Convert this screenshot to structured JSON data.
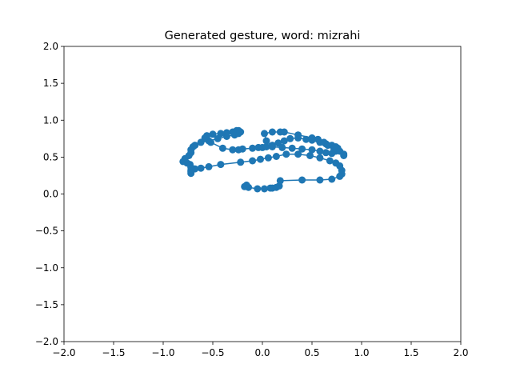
{
  "chart_data": {
    "type": "line",
    "title": "Generated gesture, word: mizrahi",
    "xlabel": "",
    "ylabel": "",
    "xlim": [
      -2.0,
      2.0
    ],
    "ylim": [
      -2.0,
      2.0
    ],
    "x_ticks": [
      "−2.0",
      "−1.5",
      "−1.0",
      "−0.5",
      "0.0",
      "0.5",
      "1.0",
      "1.5",
      "2.0"
    ],
    "y_ticks": [
      "−2.0",
      "−1.5",
      "−1.0",
      "−0.5",
      "0.0",
      "0.5",
      "1.0",
      "1.5",
      "2.0"
    ],
    "grid": false,
    "markers": true,
    "series_color": "#1f77b4",
    "series": [
      {
        "x": [
          -0.18,
          -0.16,
          -0.14,
          -0.05,
          0.02,
          0.08,
          0.1,
          0.14,
          0.17,
          0.18,
          0.4,
          0.58,
          0.7,
          0.78,
          0.8,
          0.8,
          0.78,
          0.74,
          0.68,
          0.58,
          0.48,
          0.36,
          0.24,
          0.14,
          0.06,
          -0.02,
          -0.1,
          -0.22,
          -0.42,
          -0.54,
          -0.62,
          -0.68,
          -0.72,
          -0.72,
          -0.72,
          -0.72,
          -0.73,
          -0.76,
          -0.8,
          -0.78,
          -0.74,
          -0.72,
          -0.72,
          -0.7,
          -0.68,
          -0.62,
          -0.54,
          -0.45,
          -0.36,
          -0.28,
          -0.24,
          -0.22,
          -0.24,
          -0.26,
          -0.3,
          -0.36,
          -0.42,
          -0.5,
          -0.56,
          -0.58,
          -0.52,
          -0.4,
          -0.3,
          -0.24,
          -0.2,
          -0.1,
          -0.04,
          0.0,
          0.04,
          0.1,
          0.16,
          0.22,
          0.28,
          0.36,
          0.44,
          0.5,
          0.58,
          0.64,
          0.7,
          0.74,
          0.76,
          0.74,
          0.7,
          0.64,
          0.58,
          0.5,
          0.4,
          0.3,
          0.2,
          0.1,
          0.04,
          0.02,
          0.1,
          0.18,
          0.22,
          0.36,
          0.5,
          0.56,
          0.62,
          0.66,
          0.72,
          0.78,
          0.82,
          0.82
        ],
        "y": [
          0.1,
          0.12,
          0.09,
          0.07,
          0.07,
          0.08,
          0.08,
          0.09,
          0.11,
          0.18,
          0.19,
          0.19,
          0.2,
          0.24,
          0.27,
          0.32,
          0.38,
          0.42,
          0.45,
          0.49,
          0.52,
          0.54,
          0.54,
          0.51,
          0.49,
          0.47,
          0.45,
          0.43,
          0.4,
          0.37,
          0.35,
          0.34,
          0.32,
          0.3,
          0.28,
          0.36,
          0.4,
          0.42,
          0.44,
          0.48,
          0.52,
          0.56,
          0.6,
          0.64,
          0.66,
          0.7,
          0.72,
          0.75,
          0.78,
          0.8,
          0.82,
          0.84,
          0.86,
          0.86,
          0.84,
          0.83,
          0.82,
          0.81,
          0.79,
          0.76,
          0.7,
          0.62,
          0.6,
          0.6,
          0.61,
          0.62,
          0.63,
          0.63,
          0.64,
          0.66,
          0.69,
          0.72,
          0.75,
          0.76,
          0.74,
          0.73,
          0.7,
          0.68,
          0.66,
          0.64,
          0.62,
          0.58,
          0.55,
          0.56,
          0.58,
          0.6,
          0.61,
          0.62,
          0.63,
          0.64,
          0.72,
          0.82,
          0.84,
          0.84,
          0.84,
          0.8,
          0.76,
          0.74,
          0.7,
          0.66,
          0.62,
          0.58,
          0.54,
          0.52
        ]
      }
    ]
  }
}
